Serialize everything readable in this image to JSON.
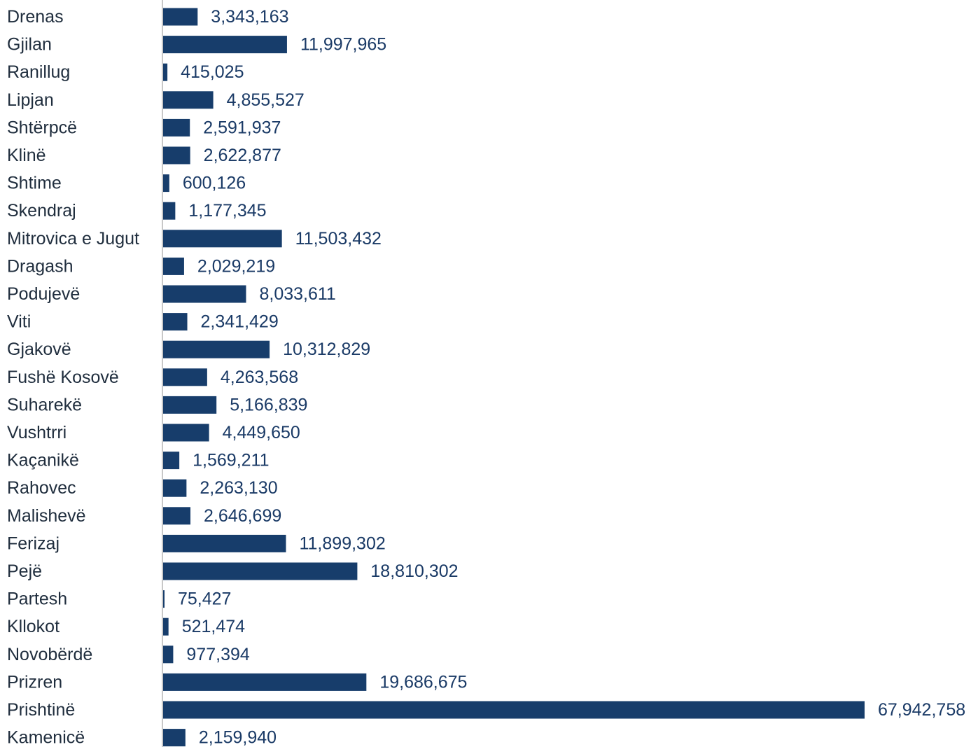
{
  "chart_data": {
    "type": "bar",
    "orientation": "horizontal",
    "categories": [
      "Drenas",
      "Gjilan",
      "Ranillug",
      "Lipjan",
      "Shtërpcë",
      "Klinë",
      "Shtime",
      "Skendraj",
      "Mitrovica e Jugut",
      "Dragash",
      "Podujevë",
      "Viti",
      "Gjakovë",
      "Fushë Kosovë",
      "Suharekë",
      "Vushtrri",
      "Kaçanikë",
      "Rahovec",
      "Malishevë",
      "Ferizaj",
      "Pejë",
      "Partesh",
      "Kllokot",
      "Novobërdë",
      "Prizren",
      "Prishtinë",
      "Kamenicë"
    ],
    "values": [
      3343163,
      11997965,
      415025,
      4855527,
      2591937,
      2622877,
      600126,
      1177345,
      11503432,
      2029219,
      8033611,
      2341429,
      10312829,
      4263568,
      5166839,
      4449650,
      1569211,
      2263130,
      2646699,
      11899302,
      18810302,
      75427,
      521474,
      977394,
      19686675,
      67942758,
      2159940
    ],
    "value_labels": [
      "3,343,163",
      "11,997,965",
      "415,025",
      "4,855,527",
      "2,591,937",
      "2,622,877",
      "600,126",
      "1,177,345",
      "11,503,432",
      "2,029,219",
      "8,033,611",
      "2,341,429",
      "10,312,829",
      "4,263,568",
      "5,166,839",
      "4,449,650",
      "1,569,211",
      "2,263,130",
      "2,646,699",
      "11,899,302",
      "18,810,302",
      "75,427",
      "521,474",
      "977,394",
      "19,686,675",
      "67,942,758",
      "2,159,940"
    ],
    "title": "",
    "xlabel": "",
    "ylabel": "",
    "grid": false,
    "bar_color": "#173d6b",
    "label_color": "#1a3a66"
  }
}
